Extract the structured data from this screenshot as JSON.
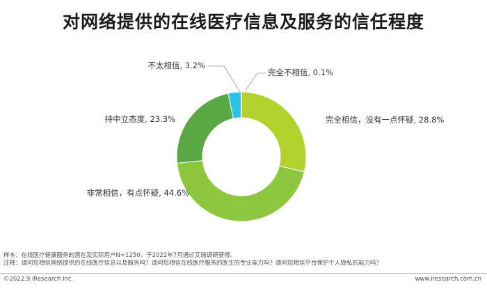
{
  "title": "对网络提供的在线医疗信息及服务的信任程度",
  "chart_data": {
    "type": "pie",
    "donut": true,
    "slices": [
      {
        "label": "完全相信，没有一点怀疑",
        "value": 28.8,
        "display": "28.8%",
        "color": "#b4d22e"
      },
      {
        "label": "非常相信，有点怀疑",
        "value": 44.6,
        "display": "44.6%",
        "color": "#8dc63f"
      },
      {
        "label": "持中立态度",
        "value": 23.3,
        "display": "23.3%",
        "color": "#5aa844"
      },
      {
        "label": "不太相信",
        "value": 3.2,
        "display": "3.2%",
        "color": "#29c3e8"
      },
      {
        "label": "完全不相信",
        "value": 0.1,
        "display": "0.1%",
        "color": "#1f8fd0"
      }
    ]
  },
  "notes": {
    "sample": "样本：在线医疗健康服务的潜在及实际用户N=1250，于2022年7月通过艾瑞调研获得。",
    "remark": "注释：请问您相信网络提供的在线医疗信息以及服务吗？请问您相信在线医疗服务的医生的专业能力吗？请问您相信平台保护个人隐私的能力吗？"
  },
  "footer": {
    "copyright": "©2022.9 iResearch Inc.",
    "website": "www.iresearch.com.cn"
  }
}
